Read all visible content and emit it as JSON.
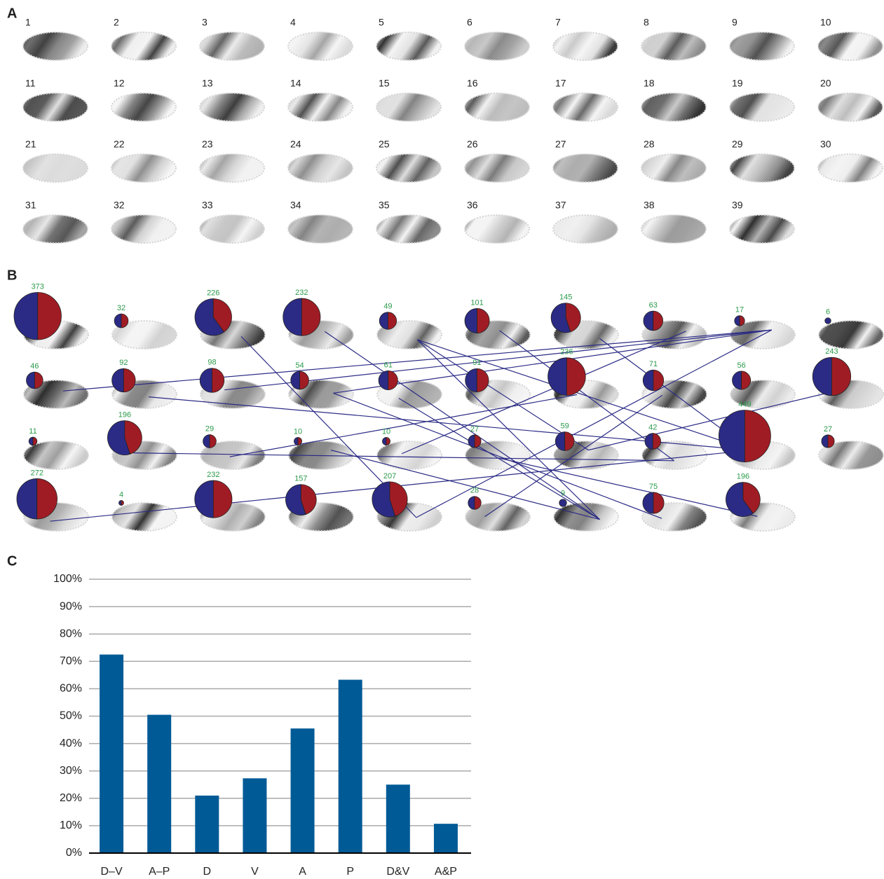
{
  "panel_labels": [
    "A",
    "B",
    "C"
  ],
  "panel_a": {
    "labels": [
      "1",
      "2",
      "3",
      "4",
      "5",
      "6",
      "7",
      "8",
      "9",
      "10",
      "11",
      "12",
      "13",
      "14",
      "15",
      "16",
      "17",
      "18",
      "19",
      "20",
      "21",
      "22",
      "23",
      "24",
      "25",
      "26",
      "27",
      "28",
      "29",
      "30",
      "31",
      "32",
      "33",
      "34",
      "35",
      "36",
      "37",
      "38",
      "39"
    ]
  },
  "panel_b": {
    "counts": [
      373,
      32,
      226,
      232,
      49,
      101,
      145,
      63,
      17,
      6,
      46,
      92,
      98,
      54,
      61,
      91,
      236,
      71,
      56,
      243,
      11,
      196,
      29,
      10,
      10,
      27,
      59,
      42,
      449,
      27,
      272,
      4,
      232,
      157,
      207,
      28,
      9,
      75,
      196
    ],
    "blue_fraction": [
      0.5,
      0.5,
      0.6,
      0.5,
      0.5,
      0.5,
      0.55,
      0.5,
      0.5,
      1,
      0.5,
      0.5,
      0.5,
      0.5,
      0.5,
      0.5,
      0.5,
      0.5,
      0.5,
      0.5,
      0.5,
      0.55,
      0.5,
      0.5,
      0.5,
      0.5,
      0.5,
      0.5,
      0.5,
      0.5,
      0.5,
      0.5,
      0.5,
      0.55,
      0.55,
      0.5,
      1,
      0.5,
      0.6
    ],
    "colors": [
      "#2b2b86",
      "#a01c24"
    ]
  },
  "chart_data": {
    "type": "bar",
    "categories": [
      "D–V",
      "A–P",
      "D",
      "V",
      "A",
      "P",
      "D&V",
      "A&P"
    ],
    "values": [
      72.5,
      50.5,
      21,
      27.3,
      45.5,
      63.3,
      25,
      10.7
    ],
    "color": "#005a96",
    "ylim": [
      0,
      100
    ],
    "yticks": [
      {
        "value": 0,
        "label": "0%"
      },
      {
        "value": 10,
        "label": "10%"
      },
      {
        "value": 20,
        "label": "20%"
      },
      {
        "value": 30,
        "label": "30%"
      },
      {
        "value": 40,
        "label": "40%"
      },
      {
        "value": 50,
        "label": "50%"
      },
      {
        "value": 60,
        "label": "60%"
      },
      {
        "value": 70,
        "label": "70%"
      },
      {
        "value": 80,
        "label": "80%"
      },
      {
        "value": 90,
        "label": "90%"
      },
      {
        "value": 100,
        "label": "100%"
      }
    ],
    "grid": true
  }
}
